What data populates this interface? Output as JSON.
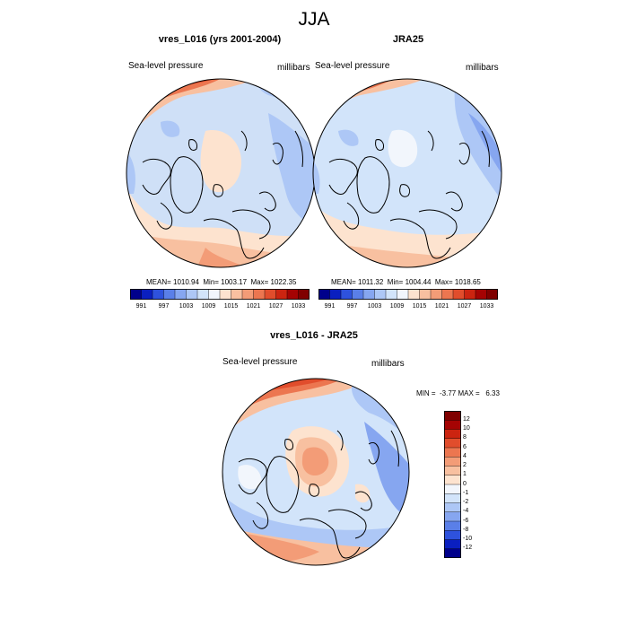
{
  "figure": {
    "title": "JJA"
  },
  "panels": [
    {
      "title": "vres_L016 (yrs 2001-2004)",
      "left_label": "Sea-level pressure",
      "right_label": "millibars",
      "stats": "MEAN= 1010.94  Min= 1003.17  Max= 1022.35"
    },
    {
      "title": "JRA25",
      "left_label": "Sea-level pressure",
      "right_label": "millibars",
      "stats": "MEAN= 1011.32  Min= 1004.44  Max= 1018.65"
    },
    {
      "title": "vres_L016 - JRA25",
      "left_label": "Sea-level pressure",
      "right_label": "millibars",
      "stats": "MIN =  -3.77 MAX =   6.33"
    }
  ],
  "colorbar_top": {
    "colors": [
      "#00008b",
      "#0a1fc0",
      "#2e52dd",
      "#5a7fe8",
      "#86a6f0",
      "#adc7f6",
      "#d2e4fa",
      "#f2f6fc",
      "#fde3cf",
      "#f8c0a0",
      "#f39c77",
      "#ec7650",
      "#e14d2c",
      "#cc2410",
      "#a50303",
      "#800000"
    ],
    "labels": [
      "991",
      "997",
      "1003",
      "1009",
      "1015",
      "1021",
      "1027",
      "1033"
    ]
  },
  "colorbar_diff": {
    "colors": [
      "#00008b",
      "#0a1fc0",
      "#2e52dd",
      "#5a7fe8",
      "#86a6f0",
      "#adc7f6",
      "#d2e4fa",
      "#f2f6fc",
      "#fde3cf",
      "#f8c0a0",
      "#f39c77",
      "#ec7650",
      "#e14d2c",
      "#cc2410",
      "#a50303",
      "#800000"
    ],
    "labels": [
      "12",
      "10",
      "8",
      "6",
      "4",
      "2",
      "1",
      "0",
      "-1",
      "-2",
      "-4",
      "-6",
      "-8",
      "-10",
      "-12"
    ]
  }
}
